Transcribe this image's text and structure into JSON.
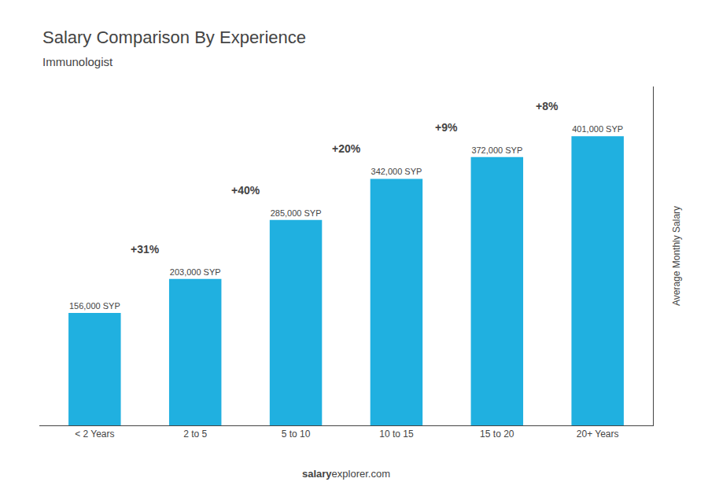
{
  "chart_data": {
    "type": "bar",
    "title": "Salary Comparison By Experience",
    "subtitle": "Immunologist",
    "categories": [
      "< 2 Years",
      "2 to 5",
      "5 to 10",
      "10 to 15",
      "15 to 20",
      "20+ Years"
    ],
    "values": [
      156000,
      203000,
      285000,
      342000,
      372000,
      401000
    ],
    "value_labels": [
      "156,000 SYP",
      "203,000 SYP",
      "285,000 SYP",
      "342,000 SYP",
      "372,000 SYP",
      "401,000 SYP"
    ],
    "data_labels": true,
    "annotations": [
      "+31%",
      "+40%",
      "+20%",
      "+9%",
      "+8%"
    ],
    "ylabel": "Average Monthly Salary",
    "footer": [
      "salary",
      "explorer.com"
    ],
    "color": "#20b0e0",
    "ylim": [
      0,
      470000
    ],
    "tick_labels": "x",
    "grid": false
  }
}
